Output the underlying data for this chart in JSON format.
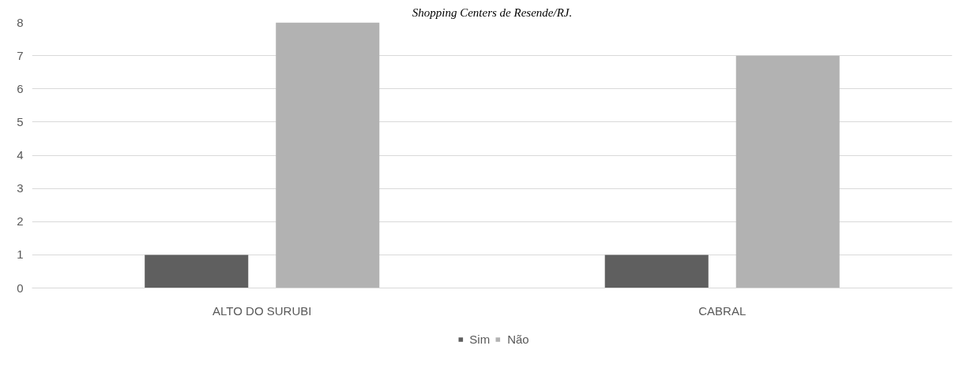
{
  "chart_data": {
    "type": "bar",
    "title": "Shopping Centers de Resende/RJ.",
    "categories": [
      "ALTO DO SURUBI",
      "CABRAL"
    ],
    "series": [
      {
        "name": "Sim",
        "color": "#5f5f5f",
        "values": [
          1,
          1
        ]
      },
      {
        "name": "Não",
        "color": "#b2b2b2",
        "values": [
          8,
          7
        ]
      }
    ],
    "ylim": [
      0,
      8
    ],
    "yticks": [
      0,
      1,
      2,
      3,
      4,
      5,
      6,
      7,
      8
    ],
    "grid": "y",
    "legend": "bottom"
  }
}
